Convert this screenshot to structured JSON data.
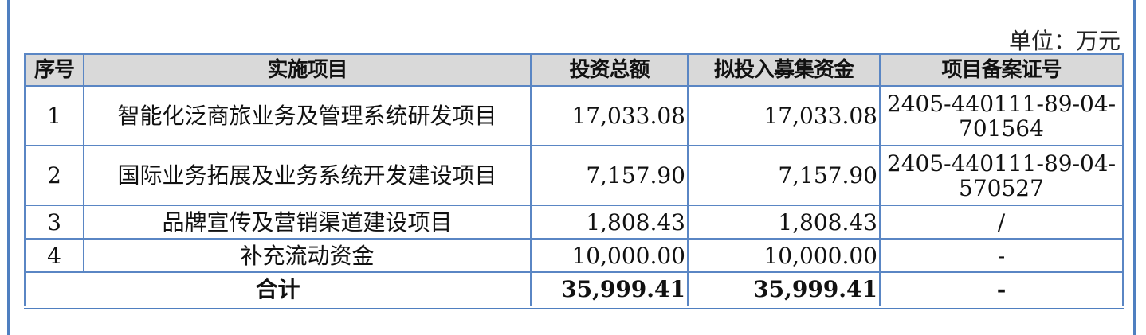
{
  "unit_label": "单位：万元",
  "table": {
    "headers": [
      "序号",
      "实施项目",
      "投资总额",
      "拟投入募集资金",
      "项目备案证号"
    ],
    "rows": [
      {
        "no": "1",
        "project": "智能化泛商旅业务及管理系统研发项目",
        "total": "17,033.08",
        "raised": "17,033.08",
        "filing": "2405-440111-89-04-701564"
      },
      {
        "no": "2",
        "project": "国际业务拓展及业务系统开发建设项目",
        "total": "7,157.90",
        "raised": "7,157.90",
        "filing": "2405-440111-89-04-570527"
      },
      {
        "no": "3",
        "project": "品牌宣传及营销渠道建设项目",
        "total": "1,808.43",
        "raised": "1,808.43",
        "filing": "/"
      },
      {
        "no": "4",
        "project": "补充流动资金",
        "total": "10,000.00",
        "raised": "10,000.00",
        "filing": "-"
      }
    ],
    "total_row": {
      "label": "合计",
      "total": "35,999.41",
      "raised": "35,999.41",
      "filing": "-"
    }
  },
  "colors": {
    "border": "#5a86c4",
    "header_bg": "#d9d9d9"
  }
}
